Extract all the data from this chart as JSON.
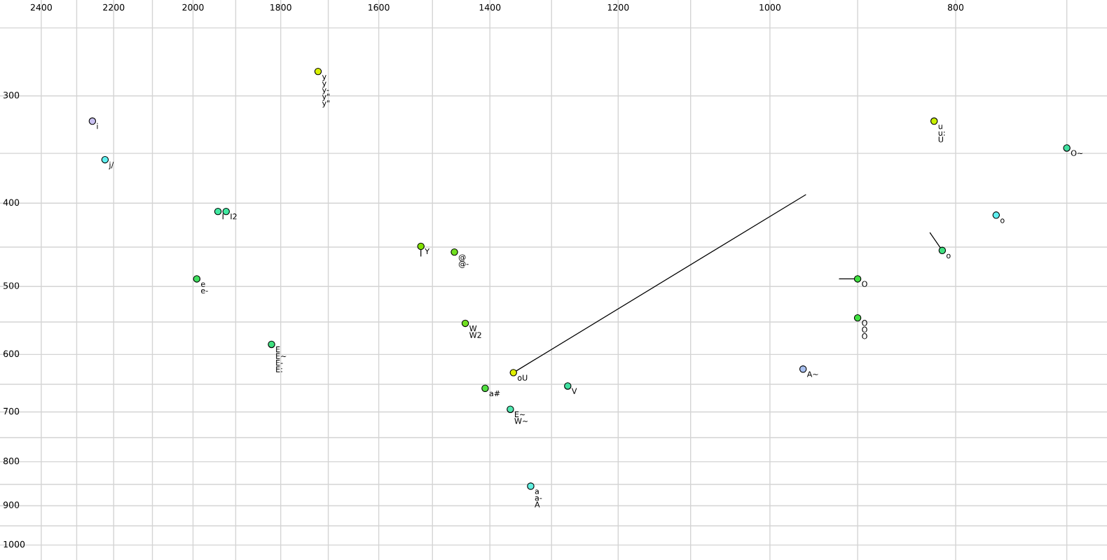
{
  "chart_data": {
    "type": "scatter",
    "log": "xy",
    "grid": true,
    "marker": "circle",
    "xlim": [
      2522,
      667
    ],
    "ylim": [
      1041,
      232
    ],
    "xticks": [
      2400,
      {
        "value": 2300,
        "label": null
      },
      2200,
      {
        "value": 2100,
        "label": null
      },
      2000,
      {
        "value": 1900,
        "label": null
      },
      1800,
      {
        "value": 1700,
        "label": null
      },
      1600,
      {
        "value": 1500,
        "label": null
      },
      1400,
      {
        "value": 1300,
        "label": null
      },
      1200,
      {
        "value": 1100,
        "label": null
      },
      1000,
      {
        "value": 900,
        "label": null
      },
      800,
      {
        "value": 700,
        "label": null
      }
    ],
    "yticks": [
      {
        "value": 250,
        "label": null
      },
      300,
      {
        "value": 350,
        "label": null
      },
      400,
      {
        "value": 450,
        "label": null
      },
      500,
      {
        "value": 550,
        "label": null
      },
      600,
      {
        "value": 650,
        "label": null
      },
      700,
      {
        "value": 750,
        "label": null
      },
      800,
      {
        "value": 850,
        "label": null
      },
      900,
      {
        "value": 950,
        "label": null
      },
      1000
    ],
    "series": [
      {
        "type": "line",
        "marker": "none",
        "color": "#000000",
        "x": [
          1521,
          1521
        ],
        "values": [
          449,
          461
        ]
      },
      {
        "type": "line",
        "marker": "none",
        "color": "#000000",
        "x": [
          1361,
          958
        ],
        "values": [
          630,
          391
        ]
      },
      {
        "type": "line",
        "marker": "none",
        "color": "#000000",
        "x": [
          920,
          900
        ],
        "values": [
          490,
          490
        ]
      },
      {
        "type": "line",
        "marker": "none",
        "color": "#000000",
        "x": [
          825,
          813
        ],
        "values": [
          433,
          454
        ]
      },
      {
        "x": [
          2257,
          2223,
          1941,
          1922,
          1521,
          1461,
          1721,
          1991,
          1820,
          1442,
          1361,
          1408,
          1366,
          1333,
          1275,
          961,
          900,
          900,
          821,
          700,
          762,
          813
        ],
        "values": [
          321,
          356,
          409,
          409,
          449,
          456,
          281,
          490,
          584,
          552,
          630,
          657,
          695,
          854,
          653,
          624,
          490,
          544,
          321,
          345,
          413,
          454
        ],
        "colors": [
          "#c8c0f0",
          "#60f0f0",
          "#40e8a0",
          "#40e8a0",
          "#80e000",
          "#70e020",
          "#d8f000",
          "#40e060",
          "#40e080",
          "#70e020",
          "#e0f000",
          "#50e040",
          "#50e8b0",
          "#60f0e0",
          "#40e0a0",
          "#a8c0f0",
          "#40e040",
          "#40e040",
          "#c8f000",
          "#40e0a0",
          "#60f0f0",
          "#40e080"
        ],
        "value_labels": [
          "i",
          "j/",
          "I",
          "I2",
          "Y",
          "@\n@-",
          "y\ny\ny-\ny\"\ny\"",
          "e\ne-",
          "E\nE~\nE-\nE:",
          "W\nW2",
          "oU",
          "a#",
          "E~\nW~",
          "a\na-\nA",
          "V",
          "A~",
          "O",
          "O\nO\nO",
          "u\nu:\nU",
          "O~",
          "o",
          "o"
        ]
      }
    ]
  }
}
